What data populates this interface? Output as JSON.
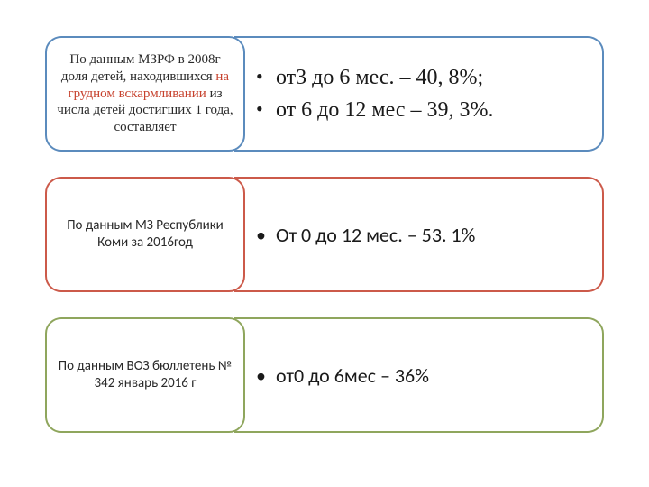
{
  "rows": [
    {
      "border_color": "#5b8bbd",
      "label": {
        "pre": "По данным МЗРФ в 2008г доля детей, находившихся ",
        "highlight": "на грудном вскармливании",
        "post": " из числа детей достигших 1 года, составляет",
        "highlight_color": "#c7432f"
      },
      "bullets": [
        "от3 до 6 мес. – 40, 8%;",
        "от 6 до 12 мес – 39, 3%."
      ]
    },
    {
      "border_color": "#cc5a4a",
      "label_plain": "По данным МЗ Республики Коми за 2016год",
      "bullets": [
        "От 0 до 12 мес. – 53. 1%"
      ]
    },
    {
      "border_color": "#8fa65d",
      "label_plain": "По данным ВОЗ бюллетень № 342 январь 2016 г",
      "bullets": [
        "от0 до 6мес – 36%"
      ]
    }
  ]
}
